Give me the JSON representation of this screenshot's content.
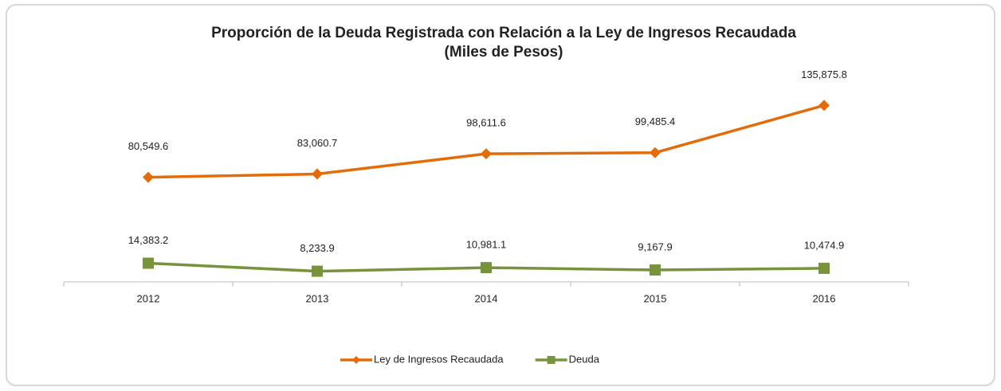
{
  "chart_data": {
    "type": "line",
    "title": "Proporción de la Deuda Registrada con Relación a la Ley de  Ingresos Recaudada",
    "subtitle": "(Miles de Pesos)",
    "categories": [
      "2012",
      "2013",
      "2014",
      "2015",
      "2016"
    ],
    "series": [
      {
        "name": "Ley de Ingresos Recaudada",
        "color": "#e36c0a",
        "marker": "diamond",
        "values": [
          80549.6,
          83060.7,
          98611.6,
          99485.4,
          135875.8
        ],
        "value_labels": [
          "80,549.6",
          "83,060.7",
          "98,611.6",
          "99,485.4",
          "135,875.8"
        ]
      },
      {
        "name": "Deuda",
        "color": "#77933c",
        "marker": "square",
        "values": [
          14383.2,
          8233.9,
          10981.1,
          9167.9,
          10474.9
        ],
        "value_labels": [
          "14,383.2",
          "8,233.9",
          "10,981.1",
          "9,167.9",
          "10,474.9"
        ]
      }
    ],
    "ylim": [
      0,
      160000
    ],
    "legend": "bottom"
  }
}
